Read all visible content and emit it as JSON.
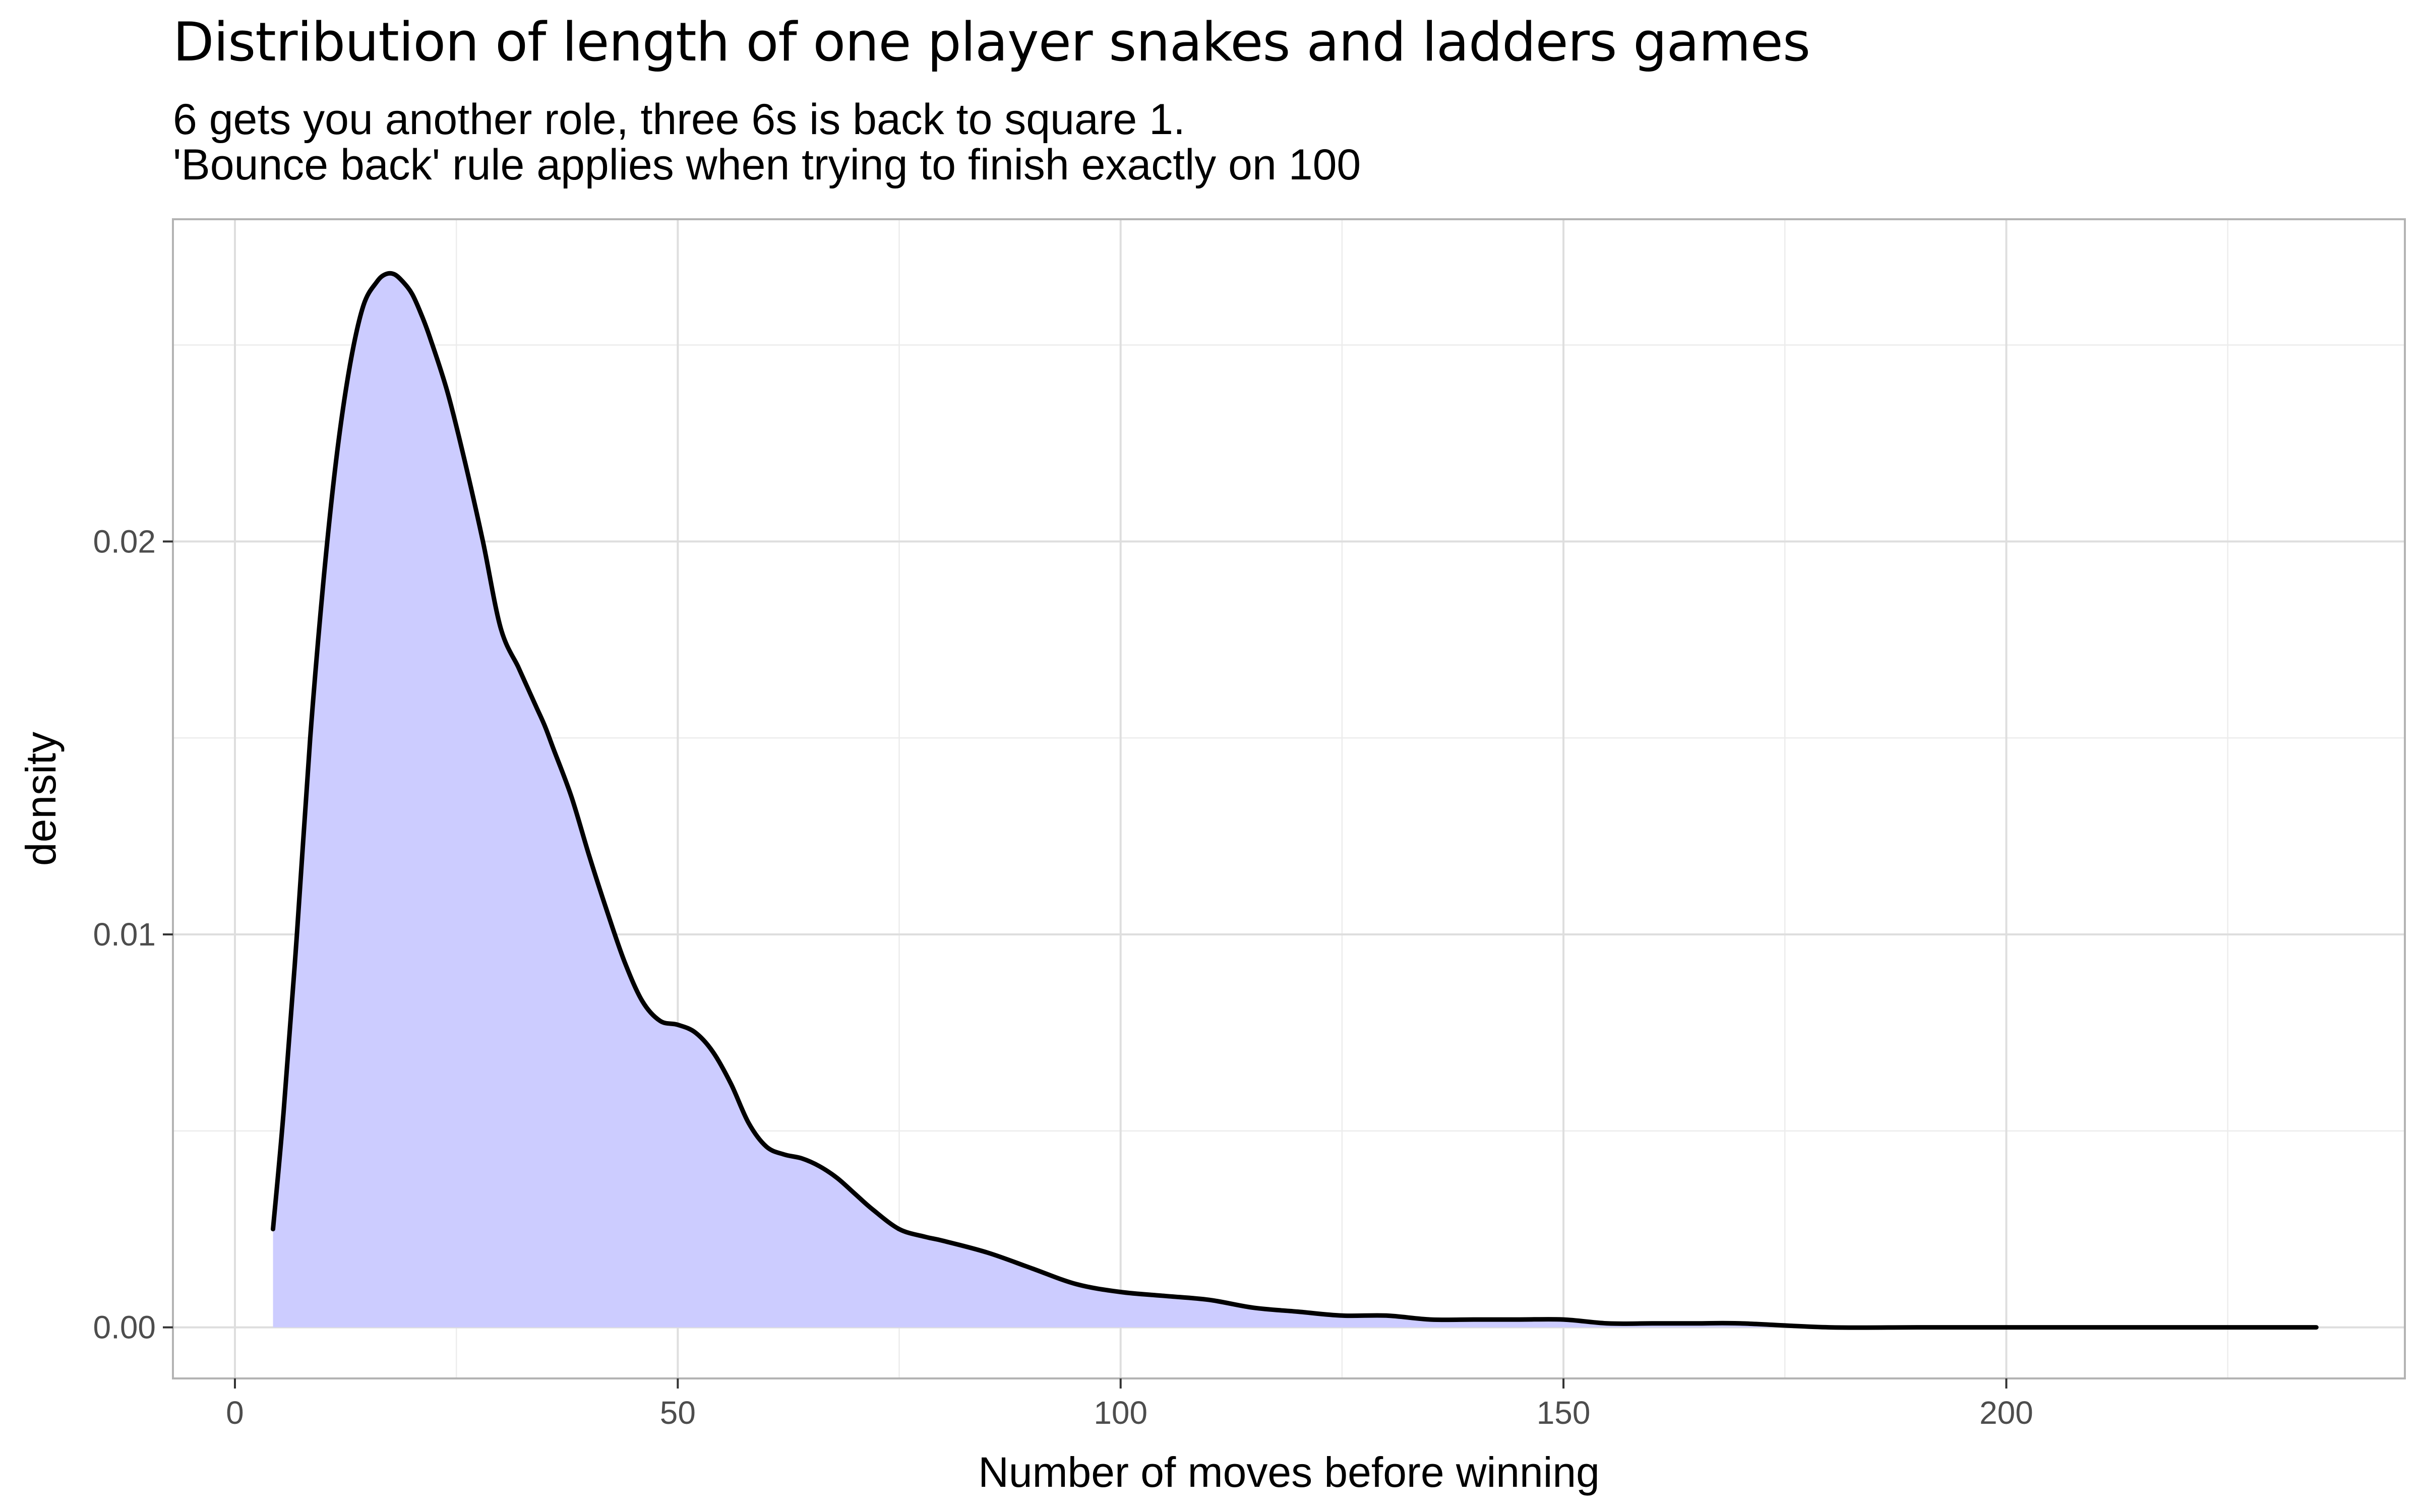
{
  "chart_data": {
    "type": "area",
    "title": "Distribution of length of one player snakes and ladders games",
    "subtitle_lines": [
      "6 gets you another role, three 6s is back to square 1.",
      "'Bounce back' rule applies when trying to finish exactly on 100"
    ],
    "xlabel": "Number of moves before winning",
    "ylabel": "density",
    "xlim": [
      -7,
      245
    ],
    "ylim": [
      -0.0013,
      0.0282
    ],
    "x_ticks": [
      0,
      50,
      100,
      150,
      200
    ],
    "x_tick_labels": [
      "0",
      "50",
      "100",
      "150",
      "200"
    ],
    "y_ticks": [
      0.0,
      0.01,
      0.02
    ],
    "y_tick_labels": [
      "0.00",
      "0.01",
      "0.02"
    ],
    "grid": true,
    "legend": "none",
    "fill_color": "#ccccff",
    "line_color": "#000000",
    "series": [
      {
        "name": "density",
        "x": [
          4.3,
          5.5,
          7,
          8.5,
          10,
          11.5,
          13,
          14.5,
          16,
          17,
          18,
          19,
          20,
          21,
          22,
          24,
          26,
          28,
          30,
          32,
          33,
          34,
          35,
          36,
          38,
          40,
          42,
          44,
          46,
          48,
          50,
          52,
          54,
          56,
          58,
          60,
          62,
          64,
          66,
          68,
          70,
          72,
          75,
          78,
          80,
          85,
          90,
          95,
          100,
          105,
          110,
          115,
          120,
          125,
          130,
          135,
          140,
          145,
          150,
          155,
          160,
          165,
          170,
          180,
          190,
          200,
          210,
          220,
          235
        ],
        "values": [
          0.0025,
          0.0055,
          0.01,
          0.015,
          0.019,
          0.0222,
          0.0245,
          0.026,
          0.0266,
          0.0268,
          0.0268,
          0.0266,
          0.0263,
          0.0258,
          0.0252,
          0.0238,
          0.022,
          0.02,
          0.0178,
          0.0168,
          0.0163,
          0.0158,
          0.0153,
          0.0147,
          0.0135,
          0.012,
          0.0106,
          0.0093,
          0.0083,
          0.0078,
          0.0077,
          0.0075,
          0.007,
          0.0062,
          0.0052,
          0.0046,
          0.0044,
          0.0043,
          0.0041,
          0.0038,
          0.0034,
          0.003,
          0.0025,
          0.0023,
          0.0022,
          0.0019,
          0.0015,
          0.0011,
          0.0009,
          0.0008,
          0.0007,
          0.0005,
          0.0004,
          0.0003,
          0.0003,
          0.0002,
          0.0002,
          0.0002,
          0.0002,
          0.0001,
          0.0001,
          0.0001,
          0.0001,
          0.0,
          0.0,
          0.0,
          0.0,
          0.0,
          0.0
        ]
      }
    ]
  }
}
